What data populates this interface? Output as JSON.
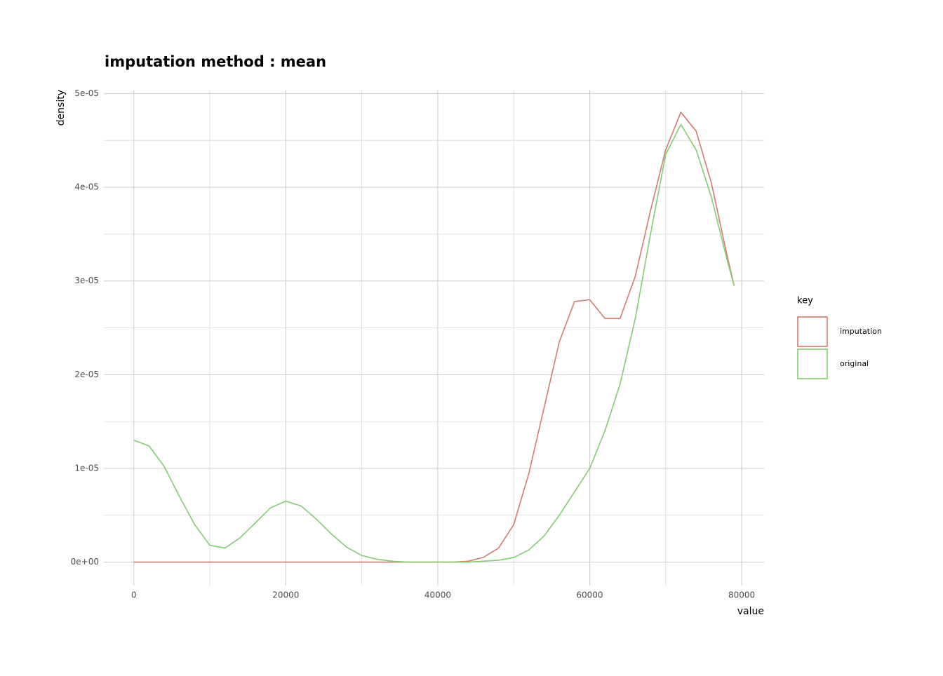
{
  "chart_data": {
    "type": "line",
    "title": "imputation method : mean",
    "x_label": "value",
    "y_label": "density",
    "x": [
      0,
      2000,
      4000,
      6000,
      8000,
      10000,
      12000,
      14000,
      16000,
      18000,
      20000,
      22000,
      24000,
      26000,
      28000,
      30000,
      32000,
      34000,
      36000,
      38000,
      40000,
      42000,
      44000,
      46000,
      48000,
      50000,
      52000,
      54000,
      56000,
      58000,
      60000,
      62000,
      64000,
      66000,
      68000,
      70000,
      72000,
      74000,
      76000,
      78000,
      79000
    ],
    "series": [
      {
        "name": "imputation",
        "color": "#d27b6e",
        "values": [
          0,
          0,
          0,
          0,
          0,
          0,
          0,
          0,
          0,
          0,
          0,
          0,
          0,
          0,
          0,
          0,
          0,
          0,
          0,
          0,
          0,
          0,
          1e-07,
          5e-07,
          1.5e-06,
          4e-06,
          9.5e-06,
          1.65e-05,
          2.35e-05,
          2.78e-05,
          2.8e-05,
          2.6e-05,
          2.6e-05,
          3.05e-05,
          3.75e-05,
          4.4e-05,
          4.8e-05,
          4.6e-05,
          4.05e-05,
          3.3e-05,
          2.95e-05
        ]
      },
      {
        "name": "original",
        "color": "#82cc72",
        "values": [
          1.3e-05,
          1.24e-05,
          1.02e-05,
          7e-06,
          4e-06,
          1.8e-06,
          1.5e-06,
          2.6e-06,
          4.2e-06,
          5.8e-06,
          6.5e-06,
          6e-06,
          4.6e-06,
          3e-06,
          1.6e-06,
          7e-07,
          3e-07,
          1e-07,
          0,
          0,
          0,
          0,
          0,
          1e-07,
          2e-07,
          5e-07,
          1.3e-06,
          2.8e-06,
          5e-06,
          7.5e-06,
          1e-05,
          1.4e-05,
          1.9e-05,
          2.6e-05,
          3.5e-05,
          4.35e-05,
          4.67e-05,
          4.4e-05,
          3.9e-05,
          3.25e-05,
          2.95e-05
        ]
      }
    ],
    "xlim": [
      -3950,
      82950
    ],
    "ylim": [
      -2.5e-06,
      5.04e-05
    ],
    "xticks": [
      0,
      20000,
      40000,
      60000,
      80000
    ],
    "yticks": [
      {
        "value": 0,
        "label": "0e+00"
      },
      {
        "value": 1e-05,
        "label": "1e-05"
      },
      {
        "value": 2e-05,
        "label": "2e-05"
      },
      {
        "value": 3e-05,
        "label": "3e-05"
      },
      {
        "value": 4e-05,
        "label": "4e-05"
      },
      {
        "value": 5e-05,
        "label": "5e-05"
      }
    ],
    "x_minor_grid": [
      10000,
      30000,
      50000,
      70000
    ],
    "y_minor_grid": [
      5e-06,
      1.5e-05,
      2.5e-05,
      3.5e-05,
      4.5e-05
    ],
    "grid": true,
    "legend_title": "key",
    "legend_position": "right"
  }
}
